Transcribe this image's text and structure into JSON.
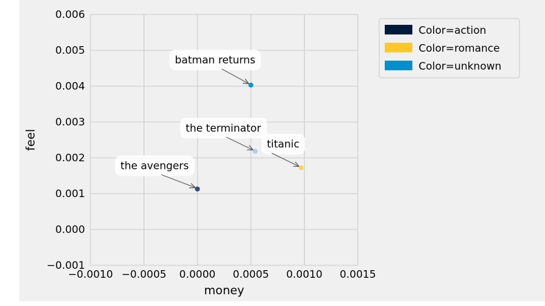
{
  "chart_data": {
    "type": "scatter",
    "title": "",
    "xlabel": "money",
    "ylabel": "feel",
    "xlim": [
      -0.001,
      0.0015
    ],
    "ylim": [
      -0.001,
      0.006
    ],
    "x_ticks": [
      "−0.0010",
      "−0.0005",
      "0.0000",
      "0.0005",
      "0.0010",
      "0.0015"
    ],
    "x_tick_values": [
      -0.001,
      -0.0005,
      0.0,
      0.0005,
      0.001,
      0.0015
    ],
    "y_ticks": [
      "−0.001",
      "0.000",
      "0.001",
      "0.002",
      "0.003",
      "0.004",
      "0.005",
      "0.006"
    ],
    "y_tick_values": [
      -0.001,
      0.0,
      0.001,
      0.002,
      0.003,
      0.004,
      0.005,
      0.006
    ],
    "grid": true,
    "legend_position": "outside-top-right",
    "legend": [
      {
        "label": "Color=action",
        "color": "#001a3c"
      },
      {
        "label": "Color=romance",
        "color": "#ffc825"
      },
      {
        "label": "Color=unknown",
        "color": "#0090d0"
      }
    ],
    "points": [
      {
        "label": "batman returns",
        "x": 0.0005,
        "y": 0.00403,
        "color": "#0a97cf",
        "text_x": -0.00021,
        "text_y": 0.00473
      },
      {
        "label": "the terminator",
        "x": 0.00054,
        "y": 0.00218,
        "color": "#b3cee6",
        "text_x": -0.00011,
        "text_y": 0.00283
      },
      {
        "label": "titanic",
        "x": 0.00097,
        "y": 0.00172,
        "color": "#ffd05a",
        "text_x": 0.00065,
        "text_y": 0.00238
      },
      {
        "label": "the avengers",
        "x": 0.0,
        "y": 0.00113,
        "color": "#2f4f7a",
        "text_x": -0.00072,
        "text_y": 0.00178
      }
    ]
  }
}
